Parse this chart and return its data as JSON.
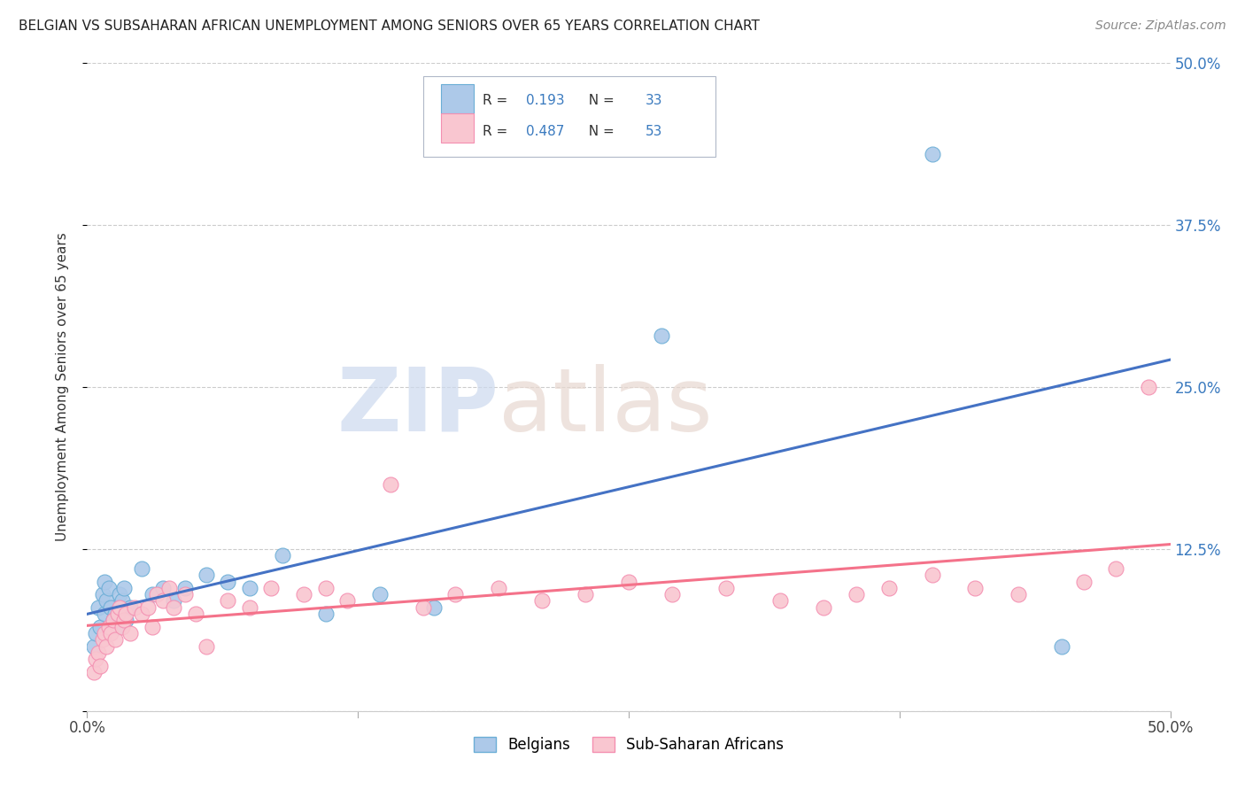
{
  "title": "BELGIAN VS SUBSAHARAN AFRICAN UNEMPLOYMENT AMONG SENIORS OVER 65 YEARS CORRELATION CHART",
  "source": "Source: ZipAtlas.com",
  "ylabel": "Unemployment Among Seniors over 65 years",
  "xlim": [
    0.0,
    0.5
  ],
  "ylim": [
    0.0,
    0.5
  ],
  "right_yticklabels": [
    "50.0%",
    "37.5%",
    "25.0%",
    "12.5%",
    ""
  ],
  "right_ytick_vals": [
    0.5,
    0.375,
    0.25,
    0.125,
    0.0
  ],
  "blue_face": "#adc9e9",
  "blue_edge": "#6baed6",
  "pink_face": "#f9c6d0",
  "pink_edge": "#f48fb1",
  "line_blue": "#4472c4",
  "line_pink": "#f4728a",
  "legend_blue_r": "0.193",
  "legend_blue_n": "33",
  "legend_pink_r": "0.487",
  "legend_pink_n": "53",
  "bx": [
    0.003,
    0.004,
    0.005,
    0.006,
    0.007,
    0.008,
    0.008,
    0.009,
    0.01,
    0.011,
    0.012,
    0.013,
    0.014,
    0.015,
    0.016,
    0.017,
    0.018,
    0.02,
    0.025,
    0.03,
    0.035,
    0.04,
    0.045,
    0.055,
    0.065,
    0.075,
    0.09,
    0.11,
    0.135,
    0.16,
    0.265,
    0.39,
    0.45
  ],
  "by": [
    0.05,
    0.06,
    0.08,
    0.065,
    0.09,
    0.1,
    0.075,
    0.085,
    0.095,
    0.08,
    0.07,
    0.075,
    0.065,
    0.09,
    0.085,
    0.095,
    0.07,
    0.08,
    0.11,
    0.09,
    0.095,
    0.085,
    0.095,
    0.105,
    0.1,
    0.095,
    0.12,
    0.075,
    0.09,
    0.08,
    0.29,
    0.43,
    0.05
  ],
  "sx": [
    0.003,
    0.004,
    0.005,
    0.006,
    0.007,
    0.008,
    0.009,
    0.01,
    0.011,
    0.012,
    0.013,
    0.014,
    0.015,
    0.016,
    0.017,
    0.018,
    0.02,
    0.022,
    0.025,
    0.028,
    0.03,
    0.032,
    0.035,
    0.038,
    0.04,
    0.045,
    0.05,
    0.055,
    0.065,
    0.075,
    0.085,
    0.1,
    0.11,
    0.12,
    0.14,
    0.155,
    0.17,
    0.19,
    0.21,
    0.23,
    0.25,
    0.27,
    0.295,
    0.32,
    0.34,
    0.355,
    0.37,
    0.39,
    0.41,
    0.43,
    0.46,
    0.475,
    0.49
  ],
  "sy": [
    0.03,
    0.04,
    0.045,
    0.035,
    0.055,
    0.06,
    0.05,
    0.065,
    0.06,
    0.07,
    0.055,
    0.075,
    0.08,
    0.065,
    0.07,
    0.075,
    0.06,
    0.08,
    0.075,
    0.08,
    0.065,
    0.09,
    0.085,
    0.095,
    0.08,
    0.09,
    0.075,
    0.05,
    0.085,
    0.08,
    0.095,
    0.09,
    0.095,
    0.085,
    0.175,
    0.08,
    0.09,
    0.095,
    0.085,
    0.09,
    0.1,
    0.09,
    0.095,
    0.085,
    0.08,
    0.09,
    0.095,
    0.105,
    0.095,
    0.09,
    0.1,
    0.11,
    0.25
  ]
}
